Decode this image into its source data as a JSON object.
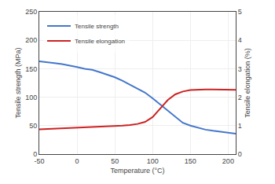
{
  "chart_data": {
    "type": "line",
    "xlabel": "Temperature (°C)",
    "ylabel": "Tensile strength (MPa)",
    "y2label": "Tensile elongation (%)",
    "x": [
      -50,
      -40,
      -30,
      -20,
      -10,
      0,
      10,
      20,
      30,
      40,
      50,
      60,
      70,
      80,
      90,
      100,
      110,
      120,
      130,
      140,
      150,
      160,
      170,
      180,
      190,
      200,
      210
    ],
    "series": [
      {
        "name": "Tensile strength",
        "color": "#4477cc",
        "values": [
          163,
          162,
          160,
          158,
          156,
          153,
          150,
          148,
          144,
          140,
          135,
          129,
          122,
          115,
          108,
          98,
          87,
          76,
          65,
          55,
          50,
          46,
          43,
          41,
          39,
          37,
          36
        ]
      },
      {
        "name": "Tensile elongation",
        "color": "#cc2222",
        "axis": "y2",
        "values": [
          0.87,
          0.88,
          0.89,
          0.9,
          0.91,
          0.93,
          0.94,
          0.95,
          0.96,
          0.97,
          0.98,
          1.0,
          1.02,
          1.06,
          1.13,
          1.3,
          1.6,
          1.9,
          2.1,
          2.2,
          2.25,
          2.27,
          2.27,
          2.27,
          2.27,
          2.26,
          2.26
        ]
      }
    ],
    "xlim": [
      -50,
      210
    ],
    "ylim": [
      0,
      250
    ],
    "y2lim": [
      0,
      5
    ],
    "xticks": [
      -50,
      0,
      50,
      100,
      150,
      200
    ],
    "yticks": [
      0,
      50,
      100,
      150,
      200,
      250
    ],
    "y2ticks": [
      0,
      1,
      2,
      3,
      4,
      5
    ],
    "grid": true,
    "legend": "upper left"
  }
}
